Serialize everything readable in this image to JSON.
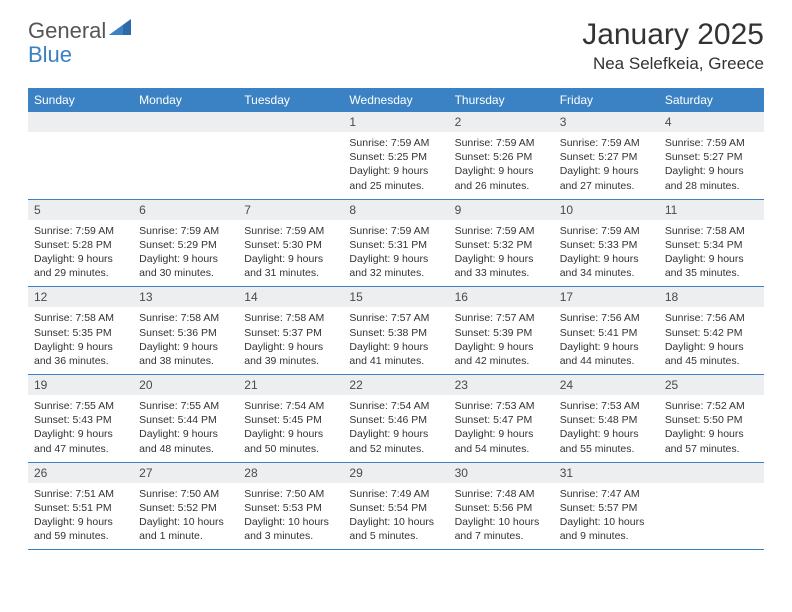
{
  "logo": {
    "part1": "General",
    "part2": "Blue"
  },
  "title": {
    "month": "January 2025",
    "location": "Nea Selefkeia, Greece"
  },
  "colors": {
    "header_bg": "#3b82c4",
    "header_text": "#ffffff",
    "daynum_bg": "#eceef0",
    "border": "#3b82c4",
    "text": "#333333",
    "background": "#ffffff"
  },
  "day_names": [
    "Sunday",
    "Monday",
    "Tuesday",
    "Wednesday",
    "Thursday",
    "Friday",
    "Saturday"
  ],
  "layout": {
    "columns": 7,
    "rows": 5
  },
  "weeks": [
    [
      {
        "day": "",
        "sunrise": "",
        "sunset": "",
        "daylight1": "",
        "daylight2": ""
      },
      {
        "day": "",
        "sunrise": "",
        "sunset": "",
        "daylight1": "",
        "daylight2": ""
      },
      {
        "day": "",
        "sunrise": "",
        "sunset": "",
        "daylight1": "",
        "daylight2": ""
      },
      {
        "day": "1",
        "sunrise": "Sunrise: 7:59 AM",
        "sunset": "Sunset: 5:25 PM",
        "daylight1": "Daylight: 9 hours",
        "daylight2": "and 25 minutes."
      },
      {
        "day": "2",
        "sunrise": "Sunrise: 7:59 AM",
        "sunset": "Sunset: 5:26 PM",
        "daylight1": "Daylight: 9 hours",
        "daylight2": "and 26 minutes."
      },
      {
        "day": "3",
        "sunrise": "Sunrise: 7:59 AM",
        "sunset": "Sunset: 5:27 PM",
        "daylight1": "Daylight: 9 hours",
        "daylight2": "and 27 minutes."
      },
      {
        "day": "4",
        "sunrise": "Sunrise: 7:59 AM",
        "sunset": "Sunset: 5:27 PM",
        "daylight1": "Daylight: 9 hours",
        "daylight2": "and 28 minutes."
      }
    ],
    [
      {
        "day": "5",
        "sunrise": "Sunrise: 7:59 AM",
        "sunset": "Sunset: 5:28 PM",
        "daylight1": "Daylight: 9 hours",
        "daylight2": "and 29 minutes."
      },
      {
        "day": "6",
        "sunrise": "Sunrise: 7:59 AM",
        "sunset": "Sunset: 5:29 PM",
        "daylight1": "Daylight: 9 hours",
        "daylight2": "and 30 minutes."
      },
      {
        "day": "7",
        "sunrise": "Sunrise: 7:59 AM",
        "sunset": "Sunset: 5:30 PM",
        "daylight1": "Daylight: 9 hours",
        "daylight2": "and 31 minutes."
      },
      {
        "day": "8",
        "sunrise": "Sunrise: 7:59 AM",
        "sunset": "Sunset: 5:31 PM",
        "daylight1": "Daylight: 9 hours",
        "daylight2": "and 32 minutes."
      },
      {
        "day": "9",
        "sunrise": "Sunrise: 7:59 AM",
        "sunset": "Sunset: 5:32 PM",
        "daylight1": "Daylight: 9 hours",
        "daylight2": "and 33 minutes."
      },
      {
        "day": "10",
        "sunrise": "Sunrise: 7:59 AM",
        "sunset": "Sunset: 5:33 PM",
        "daylight1": "Daylight: 9 hours",
        "daylight2": "and 34 minutes."
      },
      {
        "day": "11",
        "sunrise": "Sunrise: 7:58 AM",
        "sunset": "Sunset: 5:34 PM",
        "daylight1": "Daylight: 9 hours",
        "daylight2": "and 35 minutes."
      }
    ],
    [
      {
        "day": "12",
        "sunrise": "Sunrise: 7:58 AM",
        "sunset": "Sunset: 5:35 PM",
        "daylight1": "Daylight: 9 hours",
        "daylight2": "and 36 minutes."
      },
      {
        "day": "13",
        "sunrise": "Sunrise: 7:58 AM",
        "sunset": "Sunset: 5:36 PM",
        "daylight1": "Daylight: 9 hours",
        "daylight2": "and 38 minutes."
      },
      {
        "day": "14",
        "sunrise": "Sunrise: 7:58 AM",
        "sunset": "Sunset: 5:37 PM",
        "daylight1": "Daylight: 9 hours",
        "daylight2": "and 39 minutes."
      },
      {
        "day": "15",
        "sunrise": "Sunrise: 7:57 AM",
        "sunset": "Sunset: 5:38 PM",
        "daylight1": "Daylight: 9 hours",
        "daylight2": "and 41 minutes."
      },
      {
        "day": "16",
        "sunrise": "Sunrise: 7:57 AM",
        "sunset": "Sunset: 5:39 PM",
        "daylight1": "Daylight: 9 hours",
        "daylight2": "and 42 minutes."
      },
      {
        "day": "17",
        "sunrise": "Sunrise: 7:56 AM",
        "sunset": "Sunset: 5:41 PM",
        "daylight1": "Daylight: 9 hours",
        "daylight2": "and 44 minutes."
      },
      {
        "day": "18",
        "sunrise": "Sunrise: 7:56 AM",
        "sunset": "Sunset: 5:42 PM",
        "daylight1": "Daylight: 9 hours",
        "daylight2": "and 45 minutes."
      }
    ],
    [
      {
        "day": "19",
        "sunrise": "Sunrise: 7:55 AM",
        "sunset": "Sunset: 5:43 PM",
        "daylight1": "Daylight: 9 hours",
        "daylight2": "and 47 minutes."
      },
      {
        "day": "20",
        "sunrise": "Sunrise: 7:55 AM",
        "sunset": "Sunset: 5:44 PM",
        "daylight1": "Daylight: 9 hours",
        "daylight2": "and 48 minutes."
      },
      {
        "day": "21",
        "sunrise": "Sunrise: 7:54 AM",
        "sunset": "Sunset: 5:45 PM",
        "daylight1": "Daylight: 9 hours",
        "daylight2": "and 50 minutes."
      },
      {
        "day": "22",
        "sunrise": "Sunrise: 7:54 AM",
        "sunset": "Sunset: 5:46 PM",
        "daylight1": "Daylight: 9 hours",
        "daylight2": "and 52 minutes."
      },
      {
        "day": "23",
        "sunrise": "Sunrise: 7:53 AM",
        "sunset": "Sunset: 5:47 PM",
        "daylight1": "Daylight: 9 hours",
        "daylight2": "and 54 minutes."
      },
      {
        "day": "24",
        "sunrise": "Sunrise: 7:53 AM",
        "sunset": "Sunset: 5:48 PM",
        "daylight1": "Daylight: 9 hours",
        "daylight2": "and 55 minutes."
      },
      {
        "day": "25",
        "sunrise": "Sunrise: 7:52 AM",
        "sunset": "Sunset: 5:50 PM",
        "daylight1": "Daylight: 9 hours",
        "daylight2": "and 57 minutes."
      }
    ],
    [
      {
        "day": "26",
        "sunrise": "Sunrise: 7:51 AM",
        "sunset": "Sunset: 5:51 PM",
        "daylight1": "Daylight: 9 hours",
        "daylight2": "and 59 minutes."
      },
      {
        "day": "27",
        "sunrise": "Sunrise: 7:50 AM",
        "sunset": "Sunset: 5:52 PM",
        "daylight1": "Daylight: 10 hours",
        "daylight2": "and 1 minute."
      },
      {
        "day": "28",
        "sunrise": "Sunrise: 7:50 AM",
        "sunset": "Sunset: 5:53 PM",
        "daylight1": "Daylight: 10 hours",
        "daylight2": "and 3 minutes."
      },
      {
        "day": "29",
        "sunrise": "Sunrise: 7:49 AM",
        "sunset": "Sunset: 5:54 PM",
        "daylight1": "Daylight: 10 hours",
        "daylight2": "and 5 minutes."
      },
      {
        "day": "30",
        "sunrise": "Sunrise: 7:48 AM",
        "sunset": "Sunset: 5:56 PM",
        "daylight1": "Daylight: 10 hours",
        "daylight2": "and 7 minutes."
      },
      {
        "day": "31",
        "sunrise": "Sunrise: 7:47 AM",
        "sunset": "Sunset: 5:57 PM",
        "daylight1": "Daylight: 10 hours",
        "daylight2": "and 9 minutes."
      },
      {
        "day": "",
        "sunrise": "",
        "sunset": "",
        "daylight1": "",
        "daylight2": ""
      }
    ]
  ]
}
